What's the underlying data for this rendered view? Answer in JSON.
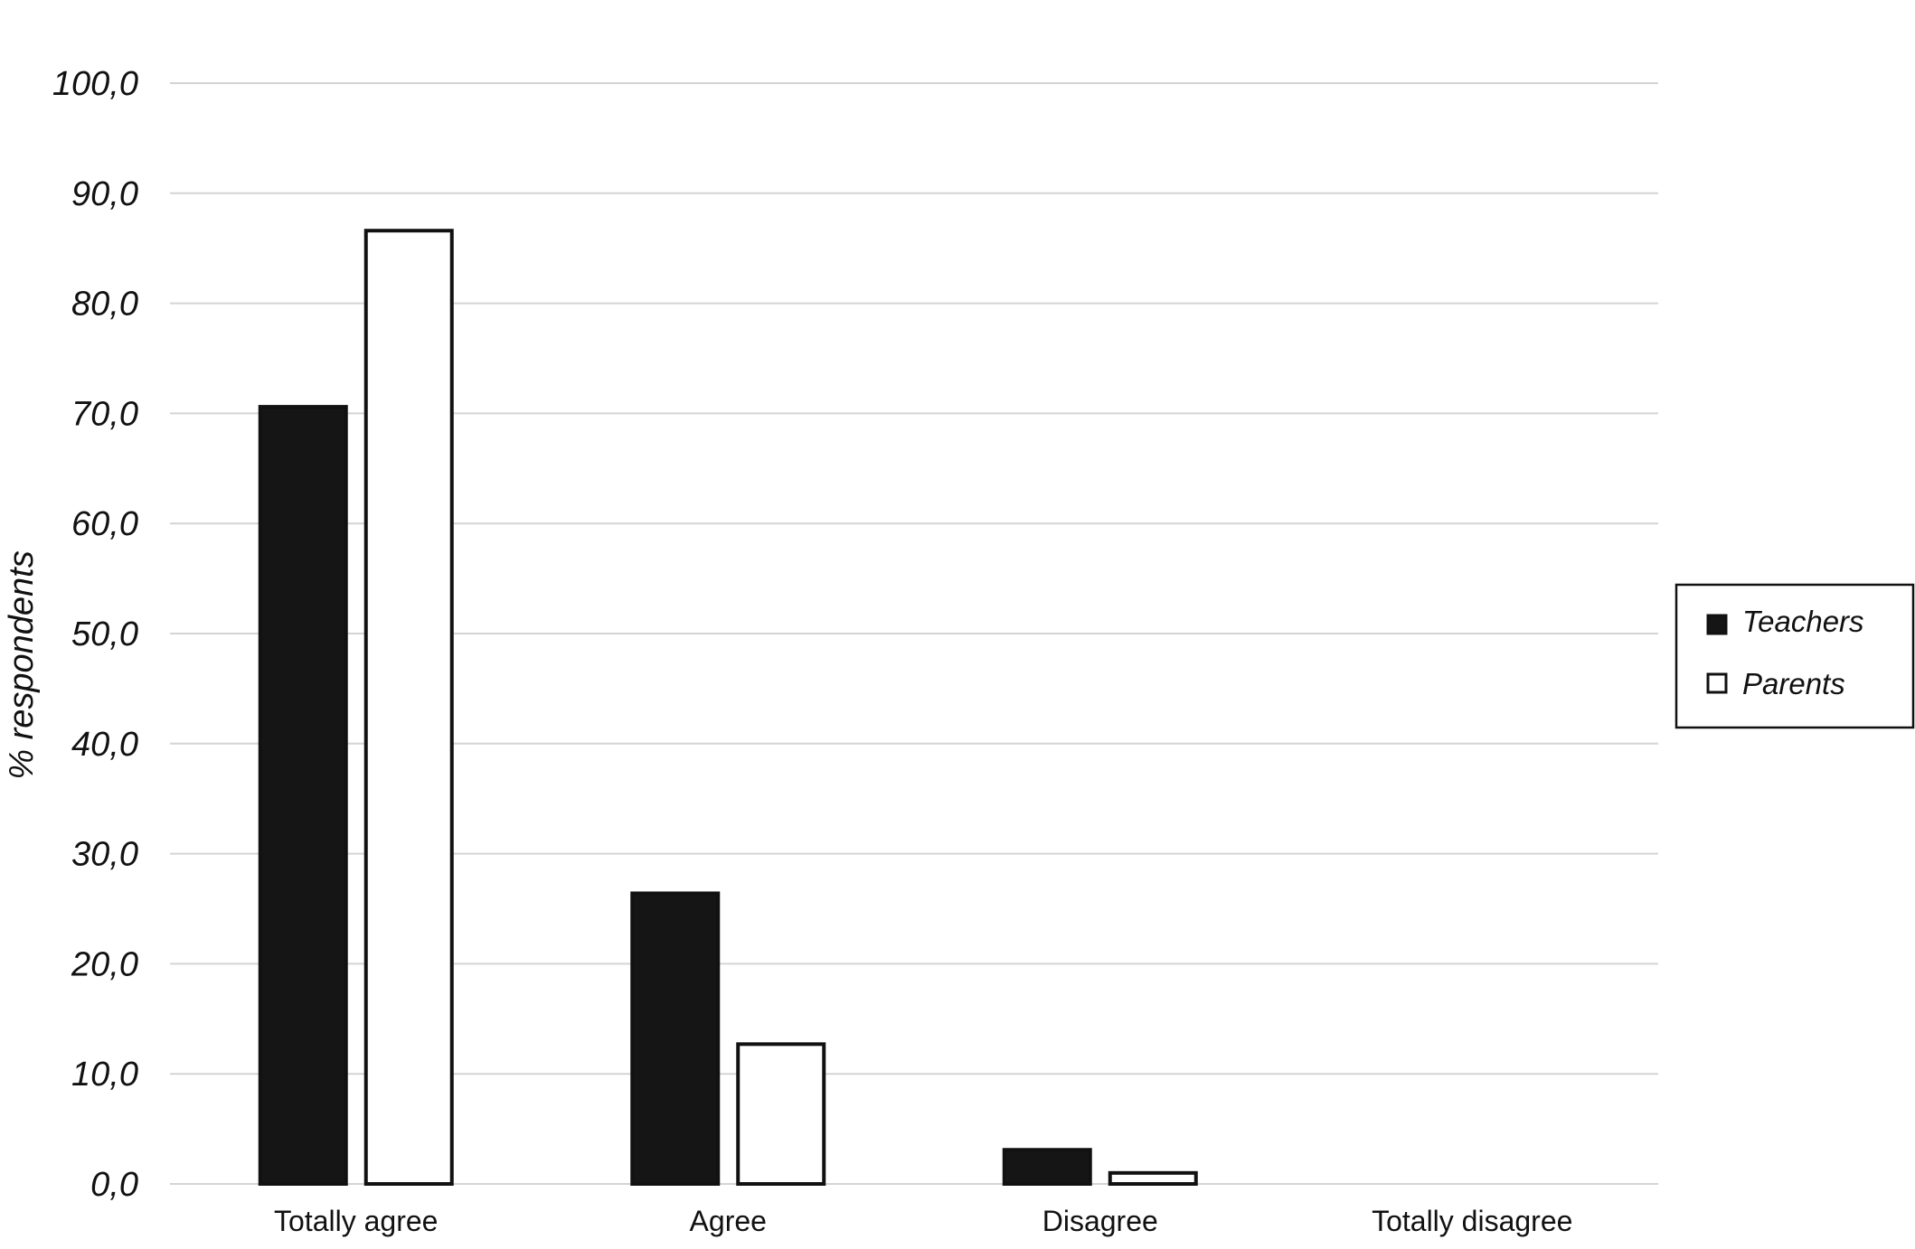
{
  "chart_data": {
    "type": "bar",
    "ylabel": "% respondents",
    "xlabel": "",
    "ylim": [
      0,
      100
    ],
    "yticks": [
      "0,0",
      "10,0",
      "20,0",
      "30,0",
      "40,0",
      "50,0",
      "60,0",
      "70,0",
      "80,0",
      "90,0",
      "100,0"
    ],
    "categories": [
      "Totally agree",
      "Agree",
      "Disagree",
      "Totally disagree"
    ],
    "series": [
      {
        "name": "Teachers",
        "values": [
          70.6,
          26.4,
          3.1,
          0.0
        ],
        "color": "#151515"
      },
      {
        "name": "Parents",
        "values": [
          86.6,
          12.7,
          1.0,
          0.0
        ],
        "color": "#ffffff"
      }
    ],
    "grid": true,
    "legend_position": "right"
  }
}
